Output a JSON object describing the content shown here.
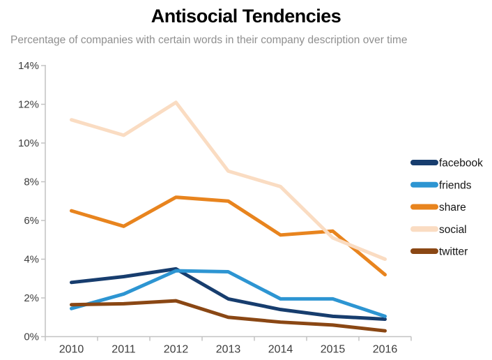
{
  "chart_data": {
    "type": "line",
    "title": "Antisocial Tendencies",
    "subtitle": "Percentage of companies with certain words in their company description over time",
    "x_labels": [
      "2010",
      "2011",
      "2012",
      "2013",
      "2014",
      "2015",
      "2016"
    ],
    "y_tick_labels": [
      "0%",
      "2%",
      "4%",
      "6%",
      "8%",
      "10%",
      "12%",
      "14%"
    ],
    "ylim": [
      0,
      14
    ],
    "y_tick_step": 2,
    "grid": false,
    "legend_position": "right",
    "axis_color": "#c2c2c2",
    "tick_text_color": "#3d3d3d",
    "subtitle_color": "#8f8f8f",
    "series": [
      {
        "name": "facebook",
        "color": "#173d6e",
        "values": [
          2.8,
          3.1,
          3.5,
          1.95,
          1.4,
          1.05,
          0.9
        ]
      },
      {
        "name": "friends",
        "color": "#2d95d2",
        "values": [
          1.45,
          2.2,
          3.4,
          3.35,
          1.95,
          1.95,
          1.05
        ]
      },
      {
        "name": "share",
        "color": "#e8841e",
        "values": [
          6.5,
          5.7,
          7.2,
          7.0,
          5.25,
          5.45,
          3.2
        ]
      },
      {
        "name": "social",
        "color": "#fadcc2",
        "values": [
          11.2,
          10.4,
          12.1,
          8.55,
          7.75,
          5.1,
          4.0
        ]
      },
      {
        "name": "twitter",
        "color": "#8a4714",
        "values": [
          1.65,
          1.7,
          1.85,
          1.0,
          0.75,
          0.6,
          0.3
        ]
      }
    ]
  }
}
